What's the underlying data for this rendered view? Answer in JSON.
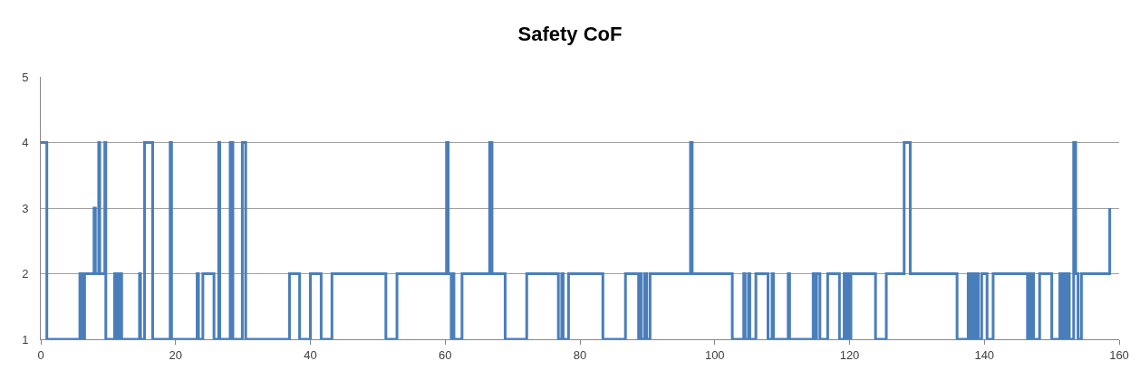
{
  "chart_data": {
    "type": "step",
    "title": "Safety CoF",
    "x": [
      0,
      0.9,
      5.8,
      6.2,
      6.5,
      7.9,
      8.1,
      8.6,
      8.75,
      9.5,
      9.65,
      10.95,
      11.2,
      11.4,
      11.6,
      11.8,
      12.0,
      14.65,
      14.8,
      15.4,
      16.6,
      19.2,
      19.4,
      23.2,
      23.4,
      24.05,
      25.7,
      26.4,
      26.55,
      28.1,
      28.5,
      29.9,
      30.4,
      36.9,
      38.4,
      40.0,
      41.6,
      43.2,
      51.2,
      52.85,
      60.2,
      60.45,
      60.9,
      61.0,
      61.3,
      62.5,
      66.6,
      66.95,
      68.9,
      72.1,
      76.8,
      77.3,
      77.5,
      78.3,
      83.4,
      86.75,
      88.7,
      88.9,
      89.1,
      89.6,
      89.9,
      90.4,
      96.4,
      96.65,
      102.6,
      104.3,
      104.5,
      105.0,
      105.2,
      106.1,
      107.9,
      108.5,
      108.7,
      110.9,
      111.1,
      114.6,
      114.9,
      115.1,
      115.6,
      116.75,
      118.5,
      119.2,
      119.5,
      119.7,
      120.0,
      120.2,
      123.85,
      125.45,
      128.1,
      129.0,
      135.95,
      137.6,
      137.9,
      138.1,
      138.5,
      138.7,
      139.1,
      139.6,
      140.4,
      141.3,
      146.4,
      146.6,
      146.8,
      147.0,
      147.3,
      148.2,
      150.0,
      151.2,
      151.5,
      151.8,
      152.1,
      152.3,
      152.6,
      153.25,
      153.55,
      153.9,
      154.4,
      158.6
    ],
    "values": [
      4,
      1,
      2,
      1,
      2,
      3,
      2,
      4,
      2,
      4,
      1,
      2,
      1,
      2,
      1,
      2,
      1,
      2,
      1,
      4,
      1,
      4,
      1,
      2,
      1,
      2,
      1,
      4,
      1,
      4,
      1,
      4,
      1,
      2,
      1,
      2,
      1,
      2,
      1,
      2,
      4,
      2,
      1,
      2,
      1,
      2,
      4,
      2,
      1,
      2,
      1,
      2,
      1,
      2,
      1,
      2,
      1,
      2,
      1,
      2,
      1,
      2,
      4,
      2,
      1,
      2,
      1,
      2,
      1,
      2,
      1,
      2,
      1,
      2,
      1,
      2,
      1,
      2,
      1,
      2,
      1,
      2,
      1,
      2,
      1,
      2,
      1,
      2,
      4,
      2,
      1,
      2,
      1,
      2,
      1,
      2,
      1,
      2,
      1,
      2,
      1,
      2,
      1,
      2,
      1,
      2,
      1,
      2,
      1,
      2,
      1,
      2,
      1,
      4,
      2,
      1,
      2,
      3
    ],
    "color": "#4a7ebb",
    "line_style": "solid",
    "marker": "none",
    "xlim": [
      0,
      160
    ],
    "xticks": [
      0,
      20,
      40,
      60,
      80,
      100,
      120,
      140,
      160
    ],
    "ylim": [
      1,
      5
    ],
    "yticks": [
      1,
      2,
      3,
      4,
      5
    ],
    "grid": "y",
    "legend": false
  }
}
